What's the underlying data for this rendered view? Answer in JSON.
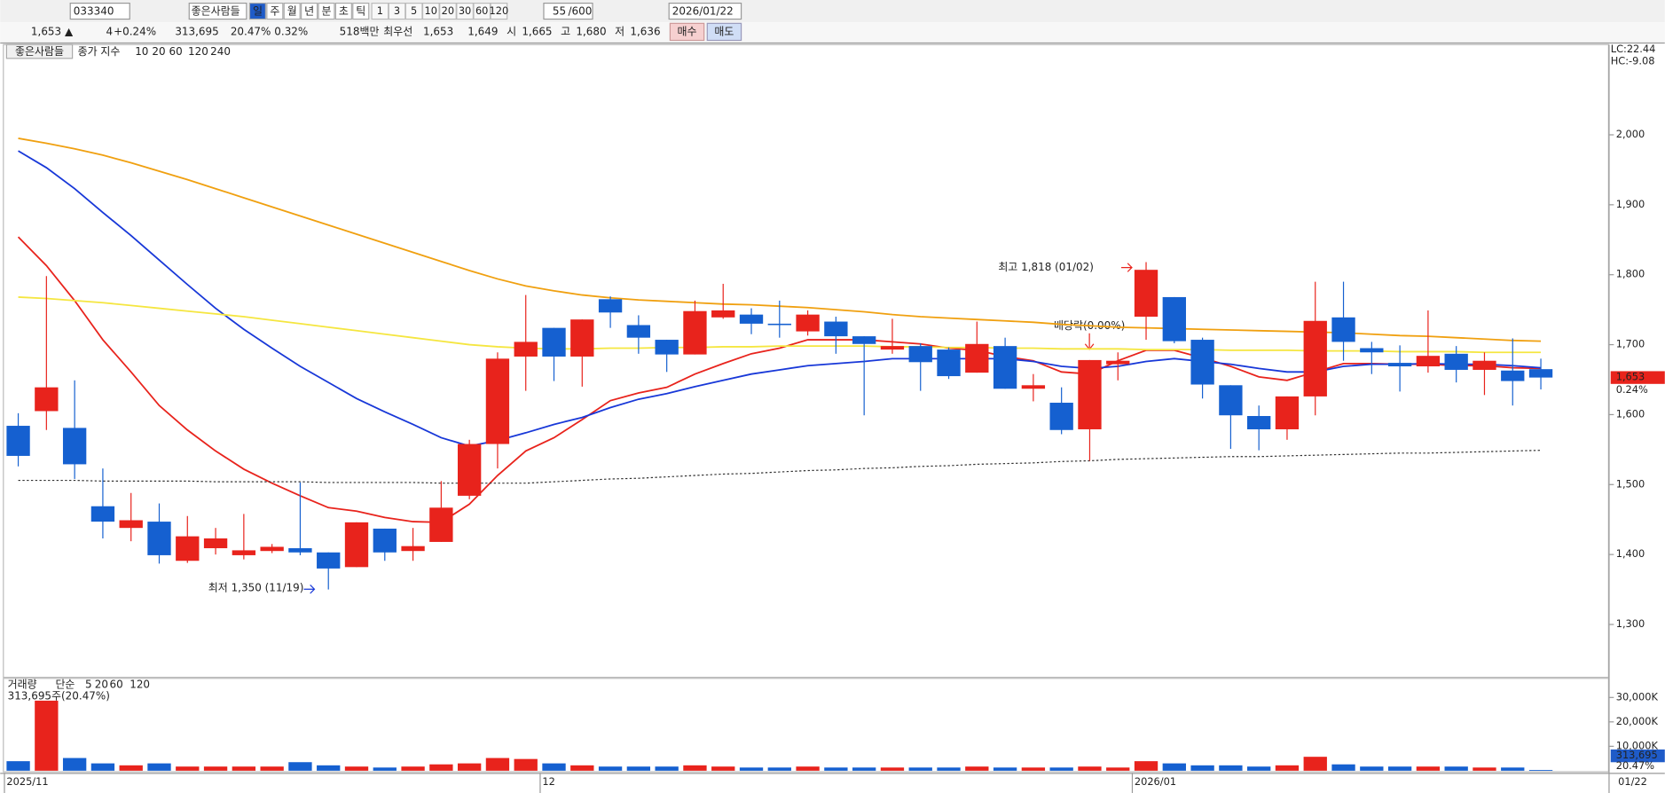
{
  "toolbar": {
    "code": "033340",
    "name": "좋은사람들",
    "periods": [
      "일",
      "주",
      "월",
      "년",
      "분",
      "초",
      "틱"
    ],
    "intervals": [
      "1",
      "3",
      "5",
      "10",
      "20",
      "30",
      "60",
      "120"
    ],
    "count": "55",
    "max": "/600",
    "date": "2026/01/22"
  },
  "quote": {
    "price": "1,653 ▲",
    "change": "4",
    "change_pct": "+0.24%",
    "volume": "313,695",
    "turnover": "20.47%",
    "ratio": "0.32%",
    "amount": "518백만",
    "best": "최우선",
    "ask": "1,653",
    "bid": "1,649",
    "open_label": "시",
    "open": "1,665",
    "high_label": "고",
    "high": "1,680",
    "low_label": "저",
    "low": "1,636",
    "buy": "매수",
    "sell": "매도"
  },
  "chart_data": {
    "type": "candlestick",
    "name": "좋은사람들",
    "legend_label": "종가 지수",
    "categories": [
      "2025/11",
      null,
      null,
      null,
      null,
      null,
      null,
      null,
      null,
      null,
      null,
      null,
      null,
      null,
      null,
      null,
      null,
      null,
      null,
      "12",
      null,
      null,
      null,
      null,
      null,
      null,
      null,
      null,
      null,
      null,
      null,
      null,
      null,
      null,
      null,
      null,
      null,
      null,
      null,
      null,
      "2026/01",
      null,
      null,
      null,
      null,
      null,
      null,
      null,
      null,
      null,
      null,
      null,
      null,
      null,
      "01/22"
    ],
    "open": [
      1584,
      1605,
      1581,
      1469,
      1438,
      1447,
      1391,
      1409,
      1399,
      1405,
      1409,
      1403,
      1382,
      1437,
      1405,
      1418,
      1484,
      1558,
      1683,
      1724,
      1683,
      1765,
      1728,
      1707,
      1686,
      1739,
      1743,
      1730,
      1719,
      1733,
      1712,
      1693,
      1698,
      1693,
      1660,
      1698,
      1637,
      1617,
      1579,
      1672,
      1740,
      1768,
      1707,
      1642,
      1598,
      1579,
      1626,
      1739,
      1695,
      1674,
      1669,
      1687,
      1664,
      1663,
      1665
    ],
    "high": [
      1602,
      1798,
      1649,
      1523,
      1488,
      1473,
      1455,
      1438,
      1458,
      1415,
      1503,
      1403,
      1446,
      1437,
      1438,
      1505,
      1564,
      1689,
      1771,
      1724,
      1736,
      1769,
      1742,
      1707,
      1763,
      1787,
      1752,
      1763,
      1749,
      1740,
      1712,
      1737,
      1702,
      1696,
      1733,
      1710,
      1658,
      1639,
      1678,
      1689,
      1818,
      1768,
      1710,
      1642,
      1613,
      1626,
      1790,
      1790,
      1704,
      1699,
      1749,
      1698,
      1689,
      1709,
      1680
    ],
    "low": [
      1526,
      1578,
      1508,
      1423,
      1419,
      1387,
      1388,
      1400,
      1393,
      1402,
      1399,
      1350,
      1382,
      1391,
      1391,
      1418,
      1479,
      1523,
      1634,
      1648,
      1640,
      1724,
      1687,
      1661,
      1686,
      1737,
      1715,
      1710,
      1713,
      1687,
      1599,
      1687,
      1634,
      1651,
      1660,
      1637,
      1619,
      1572,
      1534,
      1649,
      1707,
      1702,
      1623,
      1551,
      1549,
      1564,
      1599,
      1677,
      1658,
      1633,
      1660,
      1646,
      1628,
      1613,
      1636
    ],
    "close": [
      1541,
      1639,
      1529,
      1447,
      1449,
      1399,
      1426,
      1423,
      1406,
      1411,
      1403,
      1380,
      1446,
      1403,
      1412,
      1467,
      1558,
      1680,
      1704,
      1683,
      1736,
      1746,
      1710,
      1686,
      1748,
      1749,
      1730,
      1728,
      1743,
      1712,
      1701,
      1698,
      1675,
      1655,
      1701,
      1637,
      1642,
      1578,
      1678,
      1677,
      1807,
      1705,
      1643,
      1599,
      1579,
      1626,
      1734,
      1704,
      1689,
      1669,
      1684,
      1664,
      1677,
      1648,
      1653
    ],
    "up_color": "#e8231c",
    "down_color": "#1560d0",
    "ylim": [
      1226,
      2129
    ],
    "yticks": [
      {
        "value": 1300,
        "label": "1,300"
      },
      {
        "value": 1400,
        "label": "1,400"
      },
      {
        "value": 1500,
        "label": "1,500"
      },
      {
        "value": 1600,
        "label": "1,600"
      },
      {
        "value": 1700,
        "label": "1,700"
      },
      {
        "value": 1800,
        "label": "1,800"
      },
      {
        "value": 1900,
        "label": "1,900"
      },
      {
        "value": 2000,
        "label": "2,000"
      }
    ],
    "series": [
      {
        "name": "10",
        "color": "#e8231c",
        "values": [
          1854,
          1813,
          1763,
          1707,
          1661,
          1613,
          1578,
          1548,
          1522,
          1502,
          1484,
          1467,
          1462,
          1453,
          1447,
          1446,
          1472,
          1513,
          1548,
          1567,
          1593,
          1620,
          1631,
          1639,
          1658,
          1673,
          1687,
          1695,
          1707,
          1707,
          1707,
          1704,
          1701,
          1695,
          1692,
          1683,
          1677,
          1661,
          1658,
          1677,
          1692,
          1692,
          1681,
          1669,
          1654,
          1649,
          1661,
          1673,
          1673,
          1672,
          1672,
          1670,
          1670,
          1667,
          1666
        ]
      },
      {
        "name": "20",
        "color": "#1838d8",
        "values": [
          1977,
          1953,
          1923,
          1889,
          1856,
          1821,
          1786,
          1752,
          1722,
          1695,
          1669,
          1646,
          1623,
          1604,
          1586,
          1567,
          1555,
          1563,
          1574,
          1586,
          1596,
          1610,
          1622,
          1630,
          1640,
          1649,
          1658,
          1664,
          1670,
          1673,
          1676,
          1680,
          1680,
          1680,
          1680,
          1680,
          1676,
          1669,
          1666,
          1669,
          1676,
          1680,
          1676,
          1672,
          1666,
          1661,
          1661,
          1669,
          1672,
          1672,
          1673,
          1672,
          1672,
          1670,
          1667
        ]
      },
      {
        "name": "60",
        "color": "#f0a010",
        "values": [
          1995,
          1988,
          1980,
          1971,
          1960,
          1948,
          1936,
          1923,
          1910,
          1897,
          1884,
          1871,
          1858,
          1845,
          1832,
          1819,
          1806,
          1794,
          1784,
          1777,
          1771,
          1767,
          1764,
          1762,
          1760,
          1758,
          1757,
          1755,
          1753,
          1750,
          1747,
          1743,
          1740,
          1738,
          1736,
          1734,
          1732,
          1729,
          1727,
          1725,
          1724,
          1723,
          1722,
          1721,
          1720,
          1719,
          1718,
          1717,
          1715,
          1713,
          1712,
          1710,
          1708,
          1706,
          1705
        ]
      },
      {
        "name": "120",
        "color": "#f5e640",
        "values": [
          1768,
          1766,
          1763,
          1760,
          1756,
          1752,
          1748,
          1744,
          1740,
          1735,
          1730,
          1725,
          1720,
          1715,
          1710,
          1705,
          1700,
          1697,
          1695,
          1694,
          1694,
          1695,
          1695,
          1696,
          1696,
          1697,
          1697,
          1698,
          1698,
          1698,
          1698,
          1697,
          1697,
          1696,
          1696,
          1695,
          1695,
          1694,
          1694,
          1694,
          1693,
          1693,
          1693,
          1692,
          1692,
          1692,
          1691,
          1691,
          1691,
          1690,
          1690,
          1690,
          1689,
          1689,
          1689
        ]
      },
      {
        "name": "240",
        "color": "#333333",
        "dashed": true,
        "values": [
          1506,
          1506,
          1506,
          1505,
          1505,
          1505,
          1505,
          1504,
          1504,
          1504,
          1504,
          1503,
          1503,
          1503,
          1503,
          1502,
          1502,
          1502,
          1502,
          1504,
          1506,
          1508,
          1509,
          1511,
          1513,
          1515,
          1516,
          1518,
          1520,
          1521,
          1523,
          1524,
          1526,
          1527,
          1529,
          1530,
          1531,
          1533,
          1534,
          1536,
          1537,
          1538,
          1539,
          1540,
          1540,
          1541,
          1542,
          1543,
          1544,
          1545,
          1545,
          1546,
          1547,
          1548,
          1549
        ]
      }
    ],
    "high_note": "최고 1,818 (01/02)",
    "low_note": "최저 1,350 (11/19)",
    "dividend_note": "배당락(0.00%)",
    "lc": "LC:22.44",
    "hc": "HC:-9.08",
    "last_label": "1,653",
    "last_change": "0.24%",
    "volume": {
      "title": "거래량",
      "ma_label": "단순",
      "ma_names": [
        "5",
        "20",
        "60",
        "120"
      ],
      "ma_colors": [
        "#e020c0",
        "#e8c800",
        "#20a040",
        "#909090"
      ],
      "note": "313,695주(20.47%)",
      "values": [
        3900000,
        28700000,
        5200000,
        3000000,
        2200000,
        3000000,
        1700000,
        1700000,
        1700000,
        1700000,
        3500000,
        2200000,
        1700000,
        1300000,
        1700000,
        2600000,
        3000000,
        5200000,
        4800000,
        3000000,
        2200000,
        1700000,
        1700000,
        1700000,
        2200000,
        1700000,
        1300000,
        1300000,
        1700000,
        1300000,
        1300000,
        1300000,
        1300000,
        1300000,
        1700000,
        1300000,
        1300000,
        1300000,
        1700000,
        1300000,
        3900000,
        3000000,
        2200000,
        2200000,
        1700000,
        2200000,
        5700000,
        2600000,
        1700000,
        1700000,
        1700000,
        1700000,
        1300000,
        1300000,
        313695
      ],
      "ylim": [
        0,
        37400000
      ],
      "yticks": [
        {
          "value": 10000000,
          "label": "10,000K"
        },
        {
          "value": 20000000,
          "label": "20,000K"
        },
        {
          "value": 30000000,
          "label": "30,000K"
        }
      ]
    }
  }
}
